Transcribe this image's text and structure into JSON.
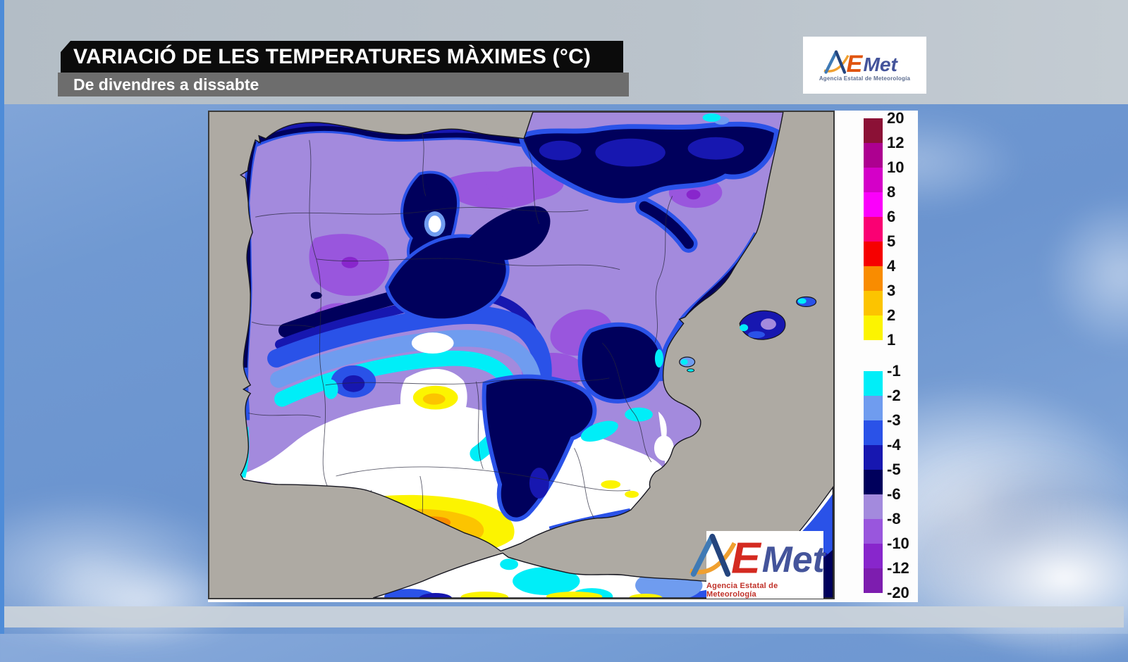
{
  "header": {
    "title": "VARIACIÓ DE LES TEMPERATURES MÀXIMES (°C)",
    "subtitle": "De divendres a dissabte"
  },
  "logo": {
    "part_a": "A",
    "part_e": "E",
    "part_met": "Met",
    "tagline": "Agencia Estatal de Meteorología"
  },
  "legend": {
    "unit": "°C",
    "positive": {
      "labels": [
        "20",
        "12",
        "10",
        "8",
        "6",
        "5",
        "4",
        "3",
        "2",
        "1"
      ],
      "colors": [
        "#8b1136",
        "#ad0090",
        "#d400c8",
        "#fb00fb",
        "#fa0073",
        "#f60000",
        "#f98c00",
        "#fcc400",
        "#fcf400"
      ]
    },
    "negative": {
      "labels": [
        "-1",
        "-2",
        "-3",
        "-4",
        "-5",
        "-6",
        "-8",
        "-10",
        "-12",
        "-20"
      ],
      "colors": [
        "#00eef8",
        "#6f9cef",
        "#2a52e8",
        "#1717b0",
        "#00005c",
        "#a38add",
        "#9956dd",
        "#8826cc",
        "#7d1daf"
      ]
    }
  },
  "map": {
    "sea_color": "#aeaaa3",
    "coast_color": "#16161f",
    "land_neutral": "#ffffff"
  }
}
